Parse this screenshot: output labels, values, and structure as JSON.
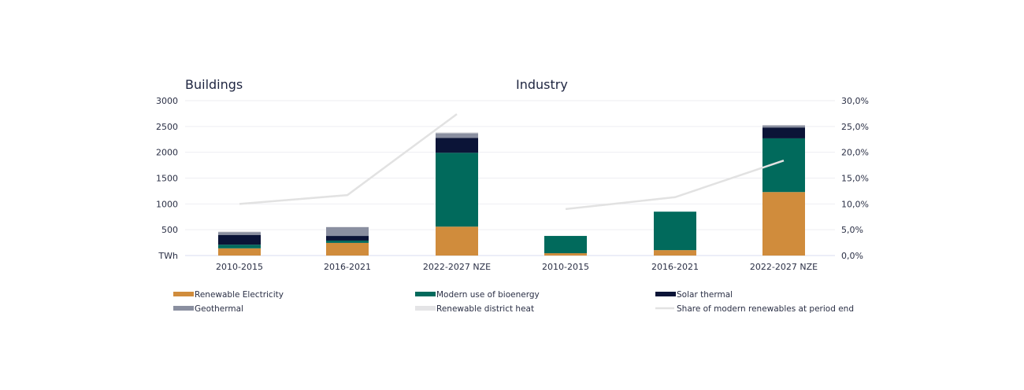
{
  "chart_data": {
    "type": "bar",
    "stacked": true,
    "panels": [
      {
        "title": "Buildings",
        "categories": [
          "2010-2015",
          "2016-2021",
          "2022-2027 NZE"
        ],
        "series": [
          {
            "name": "Renewable Electricity",
            "values": [
              140,
              245,
              560
            ]
          },
          {
            "name": "Modern use of bioenergy",
            "values": [
              70,
              45,
              1430
            ]
          },
          {
            "name": "Solar thermal",
            "values": [
              190,
              90,
              290
            ]
          },
          {
            "name": "Geothermal",
            "values": [
              55,
              170,
              90
            ]
          },
          {
            "name": "Renewable district heat",
            "values": [
              15,
              10,
              20
            ]
          }
        ],
        "share_line": {
          "name": "Share of modern renewables at period end",
          "values": [
            10.0,
            11.7,
            27.4
          ]
        }
      },
      {
        "title": "Industry",
        "categories": [
          "2010-2015",
          "2016-2021",
          "2022-2027 NZE"
        ],
        "series": [
          {
            "name": "Renewable Electricity",
            "values": [
              45,
              105,
              1230
            ]
          },
          {
            "name": "Modern use of bioenergy",
            "values": [
              335,
              745,
              1040
            ]
          },
          {
            "name": "Solar thermal",
            "values": [
              0,
              0,
              210
            ]
          },
          {
            "name": "Geothermal",
            "values": [
              0,
              0,
              40
            ]
          },
          {
            "name": "Renewable district heat",
            "values": [
              0,
              0,
              10
            ]
          }
        ],
        "share_line": {
          "name": "Share of modern renewables at period end",
          "values": [
            9.0,
            11.3,
            18.4
          ]
        }
      }
    ],
    "y_left": {
      "unit_label": "TWh",
      "range": [
        0,
        3000
      ],
      "ticks": [
        "TWh",
        "500",
        "1000",
        "1500",
        "2000",
        "2500",
        "3000"
      ]
    },
    "y_right": {
      "range": [
        0,
        30
      ],
      "ticks": [
        "0,0%",
        "5,0%",
        "10,0%",
        "15,0%",
        "20,0%",
        "25,0%",
        "30,0%"
      ]
    },
    "grid": true,
    "legend_position": "bottom",
    "legend": [
      "Renewable Electricity",
      "Modern use of bioenergy",
      "Solar thermal",
      "Geothermal",
      "Renewable district heat",
      "Share of modern renewables at period end"
    ],
    "colors": {
      "Renewable Electricity": "#d08c3c",
      "Modern use of bioenergy": "#016a5c",
      "Solar thermal": "#0b1437",
      "Geothermal": "#8a8fa0",
      "Renewable district heat": "#e4e4e6",
      "Share of modern renewables at period end": "#e2e2e2"
    }
  }
}
